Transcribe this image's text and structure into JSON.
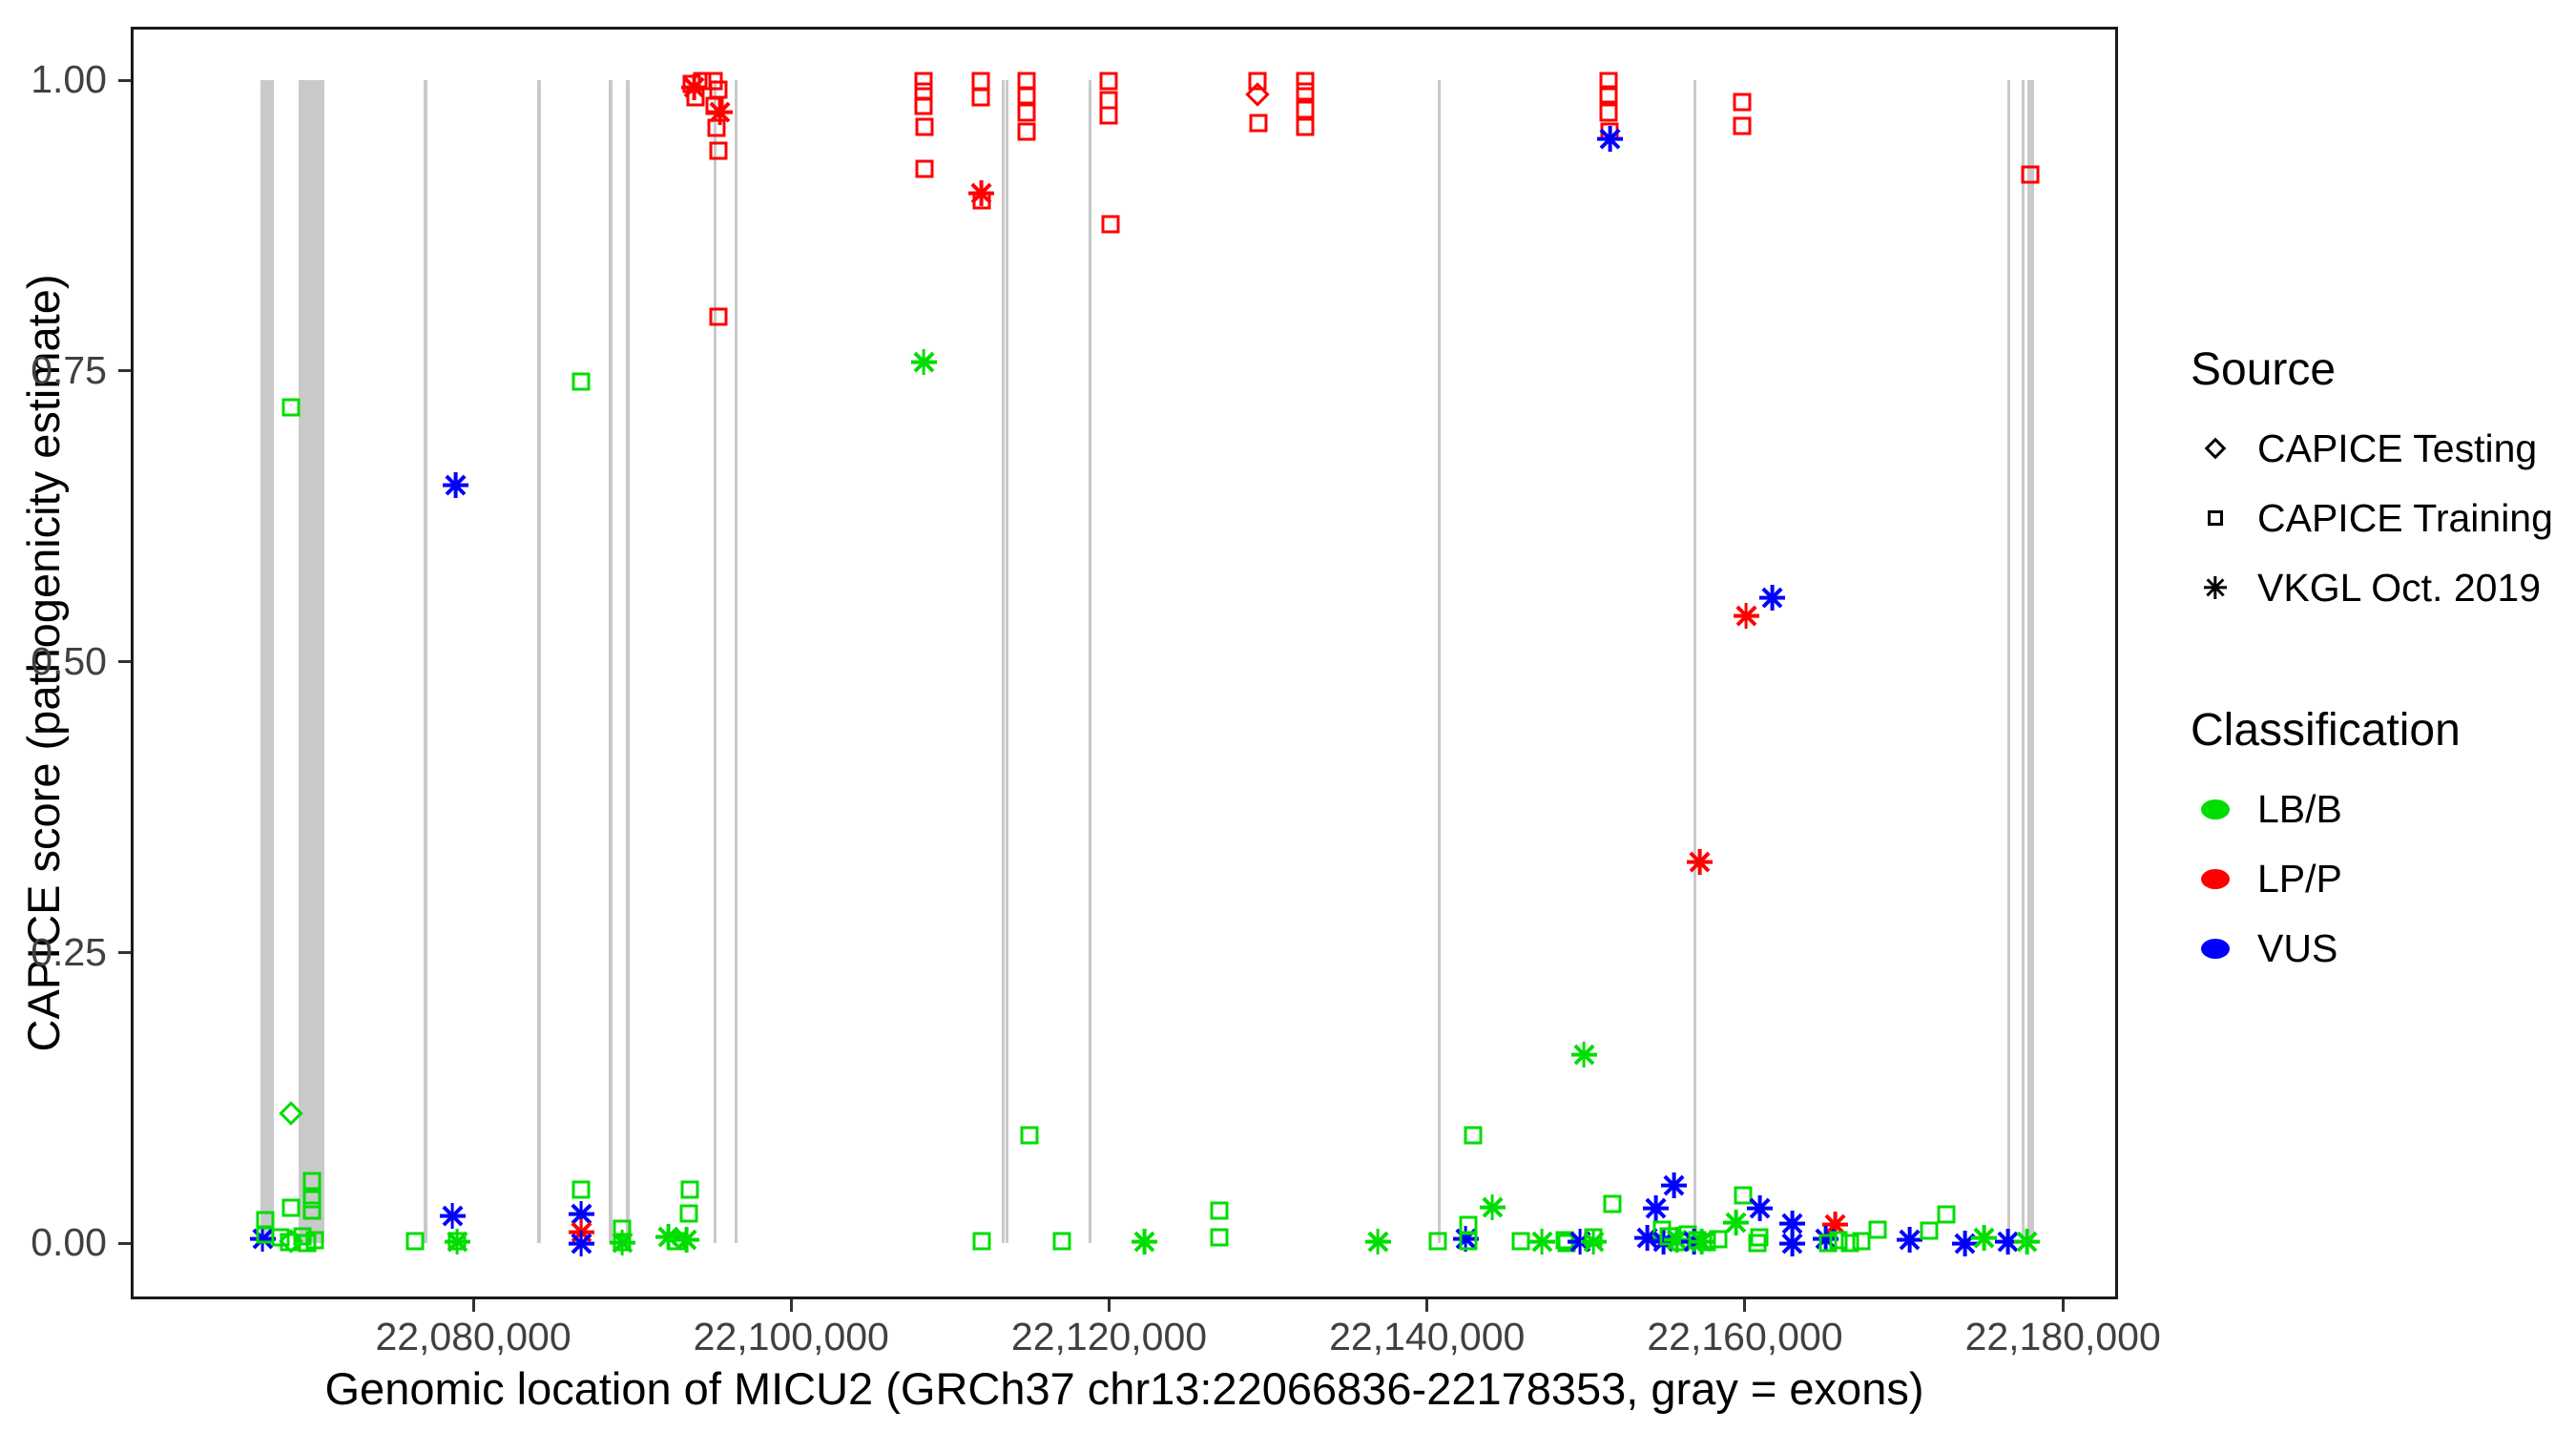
{
  "chart_data": {
    "type": "scatter",
    "title": "",
    "xlabel": "Genomic location of MICU2 (GRCh37 chr13:22066836-22178353, gray = exons)",
    "ylabel": "CAPICE score (pathogenicity estimate)",
    "x_range": [
      22058450,
      22183470
    ],
    "y_range": [
      -0.048,
      1.046
    ],
    "x_ticks": [
      22080000,
      22100000,
      22120000,
      22140000,
      22160000,
      22180000
    ],
    "x_tick_labels": [
      "22,080,000",
      "22,100,000",
      "22,120,000",
      "22,140,000",
      "22,160,000",
      "22,180,000"
    ],
    "y_ticks": [
      0.0,
      0.25,
      0.5,
      0.75,
      1.0
    ],
    "y_tick_labels": [
      "0.00",
      "0.25",
      "0.50",
      "0.75",
      "1.00"
    ],
    "grid": "off",
    "legend_position": "right",
    "colors": {
      "LB/B": "#00dd00",
      "LP/P": "#ff0000",
      "VUS": "#0000ff"
    },
    "shapes": {
      "CAPICE Testing": "diamond",
      "CAPICE Training": "square",
      "VKGL Oct. 2019": "asterisk"
    },
    "exons_note": "gray vertical bars spanning score 0-1",
    "exons": [
      [
        22066620,
        22067460
      ],
      [
        22069020,
        22070640
      ],
      [
        22076880,
        22077120
      ],
      [
        22084020,
        22084260
      ],
      [
        22088520,
        22088760
      ],
      [
        22089600,
        22089840
      ],
      [
        22095120,
        22095300
      ],
      [
        22096440,
        22096620
      ],
      [
        22113250,
        22113430
      ],
      [
        22113490,
        22113670
      ],
      [
        22118710,
        22118890
      ],
      [
        22140680,
        22140860
      ],
      [
        22156760,
        22156940
      ],
      [
        22176500,
        22176620
      ],
      [
        22177400,
        22177580
      ],
      [
        22177760,
        22178180
      ]
    ],
    "columns": [
      "position",
      "capice_score",
      "source",
      "classification"
    ],
    "rows": [
      [
        22066740,
        0.004,
        "VKGL Oct. 2019",
        "VUS"
      ],
      [
        22066900,
        0.02,
        "CAPICE Training",
        "LB/B"
      ],
      [
        22066900,
        0.008,
        "CAPICE Training",
        "LB/B"
      ],
      [
        22067900,
        0.005,
        "CAPICE Training",
        "LB/B"
      ],
      [
        22068400,
        0.001,
        "CAPICE Training",
        "LB/B"
      ],
      [
        22068550,
        0.002,
        "CAPICE Testing",
        "LB/B"
      ],
      [
        22068540,
        0.031,
        "CAPICE Training",
        "LB/B"
      ],
      [
        22068540,
        0.112,
        "CAPICE Testing",
        "LB/B"
      ],
      [
        22068540,
        0.719,
        "CAPICE Training",
        "LB/B"
      ],
      [
        22069280,
        0.006,
        "CAPICE Training",
        "LB/B"
      ],
      [
        22069550,
        0.0,
        "CAPICE Training",
        "LB/B"
      ],
      [
        22069860,
        0.054,
        "CAPICE Training",
        "LB/B"
      ],
      [
        22069860,
        0.038,
        "CAPICE Training",
        "LB/B"
      ],
      [
        22069860,
        0.028,
        "CAPICE Training",
        "LB/B"
      ],
      [
        22070050,
        0.003,
        "CAPICE Training",
        "LB/B"
      ],
      [
        22076340,
        0.002,
        "CAPICE Training",
        "LB/B"
      ],
      [
        22078680,
        0.024,
        "VKGL Oct. 2019",
        "VUS"
      ],
      [
        22078900,
        0.652,
        "VKGL Oct. 2019",
        "VUS"
      ],
      [
        22078980,
        0.002,
        "VKGL Oct. 2019",
        "LB/B"
      ],
      [
        22078980,
        0.002,
        "CAPICE Training",
        "LB/B"
      ],
      [
        22086780,
        0.741,
        "CAPICE Training",
        "LB/B"
      ],
      [
        22086780,
        0.046,
        "CAPICE Training",
        "LB/B"
      ],
      [
        22086780,
        0.025,
        "VKGL Oct. 2019",
        "VUS"
      ],
      [
        22086780,
        0.01,
        "VKGL Oct. 2019",
        "LP/P"
      ],
      [
        22086780,
        0.0,
        "VKGL Oct. 2019",
        "VUS"
      ],
      [
        22089360,
        0.013,
        "CAPICE Training",
        "LB/B"
      ],
      [
        22089360,
        0.001,
        "VKGL Oct. 2019",
        "LB/B"
      ],
      [
        22089360,
        0.001,
        "CAPICE Training",
        "LB/B"
      ],
      [
        22093740,
        0.997,
        "CAPICE Training",
        "LP/P"
      ],
      [
        22094400,
        0.999,
        "CAPICE Training",
        "LP/P"
      ],
      [
        22095100,
        0.999,
        "CAPICE Training",
        "LP/P"
      ],
      [
        22095400,
        0.992,
        "CAPICE Training",
        "LP/P"
      ],
      [
        22094000,
        0.985,
        "CAPICE Training",
        "LP/P"
      ],
      [
        22095200,
        0.978,
        "CAPICE Training",
        "LP/P"
      ],
      [
        22093900,
        0.994,
        "VKGL Oct. 2019",
        "LP/P"
      ],
      [
        22095500,
        0.973,
        "VKGL Oct. 2019",
        "LP/P"
      ],
      [
        22095300,
        0.959,
        "CAPICE Training",
        "LP/P"
      ],
      [
        22095400,
        0.939,
        "CAPICE Training",
        "LP/P"
      ],
      [
        22095400,
        0.797,
        "CAPICE Training",
        "LP/P"
      ],
      [
        22093600,
        0.046,
        "CAPICE Training",
        "LB/B"
      ],
      [
        22093550,
        0.026,
        "CAPICE Training",
        "LB/B"
      ],
      [
        22092300,
        0.006,
        "VKGL Oct. 2019",
        "LB/B"
      ],
      [
        22093400,
        0.003,
        "VKGL Oct. 2019",
        "LB/B"
      ],
      [
        22092800,
        0.002,
        "CAPICE Training",
        "LB/B"
      ],
      [
        22108330,
        0.758,
        "VKGL Oct. 2019",
        "LB/B"
      ],
      [
        22108330,
        0.999,
        "CAPICE Training",
        "LP/P"
      ],
      [
        22108330,
        0.99,
        "CAPICE Training",
        "LP/P"
      ],
      [
        22108330,
        0.978,
        "CAPICE Training",
        "LP/P"
      ],
      [
        22108380,
        0.96,
        "CAPICE Training",
        "LP/P"
      ],
      [
        22108380,
        0.924,
        "CAPICE Training",
        "LP/P"
      ],
      [
        22111930,
        0.999,
        "CAPICE Training",
        "LP/P"
      ],
      [
        22111930,
        0.985,
        "CAPICE Training",
        "LP/P"
      ],
      [
        22111980,
        0.897,
        "CAPICE Training",
        "LP/P"
      ],
      [
        22111980,
        0.903,
        "VKGL Oct. 2019",
        "LP/P"
      ],
      [
        22111980,
        0.002,
        "CAPICE Training",
        "LB/B"
      ],
      [
        22114810,
        0.999,
        "CAPICE Training",
        "LP/P"
      ],
      [
        22114810,
        0.987,
        "CAPICE Training",
        "LP/P"
      ],
      [
        22114810,
        0.972,
        "CAPICE Training",
        "LP/P"
      ],
      [
        22114810,
        0.956,
        "CAPICE Training",
        "LP/P"
      ],
      [
        22114990,
        0.093,
        "CAPICE Training",
        "LB/B"
      ],
      [
        22119970,
        0.999,
        "CAPICE Training",
        "LP/P"
      ],
      [
        22119970,
        0.983,
        "CAPICE Training",
        "LP/P"
      ],
      [
        22119970,
        0.97,
        "CAPICE Training",
        "LP/P"
      ],
      [
        22120070,
        0.876,
        "CAPICE Training",
        "LP/P"
      ],
      [
        22117030,
        0.002,
        "CAPICE Training",
        "LB/B"
      ],
      [
        22122250,
        0.002,
        "VKGL Oct. 2019",
        "LB/B"
      ],
      [
        22126930,
        0.028,
        "CAPICE Training",
        "LB/B"
      ],
      [
        22126930,
        0.005,
        "CAPICE Training",
        "LB/B"
      ],
      [
        22129330,
        0.999,
        "CAPICE Training",
        "LP/P"
      ],
      [
        22129330,
        0.988,
        "CAPICE Testing",
        "LP/P"
      ],
      [
        22129400,
        0.963,
        "CAPICE Training",
        "LP/P"
      ],
      [
        22132330,
        0.999,
        "CAPICE Training",
        "LP/P"
      ],
      [
        22132330,
        0.99,
        "CAPICE Training",
        "LP/P"
      ],
      [
        22132330,
        0.975,
        "CAPICE Training",
        "LP/P"
      ],
      [
        22132330,
        0.96,
        "CAPICE Training",
        "LP/P"
      ],
      [
        22136900,
        0.002,
        "VKGL Oct. 2019",
        "LB/B"
      ],
      [
        22140680,
        0.002,
        "CAPICE Training",
        "LB/B"
      ],
      [
        22142420,
        0.004,
        "VKGL Oct. 2019",
        "VUS"
      ],
      [
        22142600,
        0.016,
        "CAPICE Training",
        "LB/B"
      ],
      [
        22142600,
        0.002,
        "CAPICE Training",
        "LB/B"
      ],
      [
        22142900,
        0.093,
        "CAPICE Training",
        "LB/B"
      ],
      [
        22144100,
        0.031,
        "VKGL Oct. 2019",
        "LB/B"
      ],
      [
        22145900,
        0.002,
        "CAPICE Training",
        "LB/B"
      ],
      [
        22147220,
        0.002,
        "VKGL Oct. 2019",
        "LB/B"
      ],
      [
        22148660,
        0.003,
        "CAPICE Training",
        "LB/B"
      ],
      [
        22148780,
        0.0,
        "CAPICE Training",
        "LB/B"
      ],
      [
        22149620,
        0.002,
        "VKGL Oct. 2019",
        "VUS"
      ],
      [
        22150460,
        0.002,
        "VKGL Oct. 2019",
        "LB/B"
      ],
      [
        22150460,
        0.005,
        "CAPICE Training",
        "LB/B"
      ],
      [
        22149860,
        0.162,
        "VKGL Oct. 2019",
        "LB/B"
      ],
      [
        22151660,
        0.034,
        "CAPICE Training",
        "LB/B"
      ],
      [
        22151420,
        0.999,
        "CAPICE Training",
        "LP/P"
      ],
      [
        22151420,
        0.988,
        "CAPICE Training",
        "LP/P"
      ],
      [
        22151420,
        0.972,
        "CAPICE Training",
        "LP/P"
      ],
      [
        22151470,
        0.956,
        "CAPICE Training",
        "LP/P"
      ],
      [
        22151500,
        0.95,
        "VKGL Oct. 2019",
        "VUS"
      ],
      [
        22153880,
        0.005,
        "VKGL Oct. 2019",
        "VUS"
      ],
      [
        22154420,
        0.03,
        "VKGL Oct. 2019",
        "VUS"
      ],
      [
        22154780,
        0.012,
        "CAPICE Training",
        "LB/B"
      ],
      [
        22155560,
        0.05,
        "VKGL Oct. 2019",
        "VUS"
      ],
      [
        22154900,
        0.002,
        "VKGL Oct. 2019",
        "VUS"
      ],
      [
        22155200,
        0.006,
        "CAPICE Training",
        "LB/B"
      ],
      [
        22155700,
        0.003,
        "VKGL Oct. 2019",
        "LB/B"
      ],
      [
        22155900,
        0.001,
        "CAPICE Training",
        "LB/B"
      ],
      [
        22156400,
        0.008,
        "CAPICE Training",
        "LB/B"
      ],
      [
        22156800,
        0.002,
        "VKGL Oct. 2019",
        "VUS"
      ],
      [
        22157000,
        0.003,
        "CAPICE Training",
        "LB/B"
      ],
      [
        22157300,
        0.002,
        "VKGL Oct. 2019",
        "LB/B"
      ],
      [
        22157600,
        0.001,
        "CAPICE Training",
        "LB/B"
      ],
      [
        22158300,
        0.004,
        "CAPICE Training",
        "LB/B"
      ],
      [
        22157180,
        0.328,
        "VKGL Oct. 2019",
        "LP/P"
      ],
      [
        22159880,
        0.041,
        "CAPICE Training",
        "LB/B"
      ],
      [
        22159460,
        0.018,
        "VKGL Oct. 2019",
        "LB/B"
      ],
      [
        22160960,
        0.03,
        "VKGL Oct. 2019",
        "VUS"
      ],
      [
        22160900,
        0.005,
        "CAPICE Training",
        "LB/B"
      ],
      [
        22160800,
        0.0,
        "CAPICE Training",
        "LB/B"
      ],
      [
        22159830,
        0.981,
        "CAPICE Training",
        "LP/P"
      ],
      [
        22159830,
        0.961,
        "CAPICE Training",
        "LP/P"
      ],
      [
        22160070,
        0.54,
        "VKGL Oct. 2019",
        "LP/P"
      ],
      [
        22161740,
        0.555,
        "VKGL Oct. 2019",
        "VUS"
      ],
      [
        22163000,
        0.017,
        "VKGL Oct. 2019",
        "VUS"
      ],
      [
        22163000,
        0.0,
        "VKGL Oct. 2019",
        "VUS"
      ],
      [
        22165700,
        0.016,
        "VKGL Oct. 2019",
        "LP/P"
      ],
      [
        22165100,
        0.004,
        "VKGL Oct. 2019",
        "VUS"
      ],
      [
        22165200,
        0.0,
        "CAPICE Training",
        "LB/B"
      ],
      [
        22165900,
        0.003,
        "CAPICE Training",
        "LB/B"
      ],
      [
        22166600,
        0.0,
        "CAPICE Training",
        "LB/B"
      ],
      [
        22167300,
        0.002,
        "CAPICE Training",
        "LB/B"
      ],
      [
        22168340,
        0.012,
        "CAPICE Training",
        "LB/B"
      ],
      [
        22170380,
        0.003,
        "VKGL Oct. 2019",
        "VUS"
      ],
      [
        22171580,
        0.011,
        "CAPICE Training",
        "LB/B"
      ],
      [
        22172660,
        0.025,
        "CAPICE Training",
        "LB/B"
      ],
      [
        22173860,
        0.0,
        "VKGL Oct. 2019",
        "VUS"
      ],
      [
        22175060,
        0.005,
        "VKGL Oct. 2019",
        "LB/B"
      ],
      [
        22176560,
        0.002,
        "VKGL Oct. 2019",
        "VUS"
      ],
      [
        22177760,
        0.002,
        "VKGL Oct. 2019",
        "LB/B"
      ],
      [
        22177940,
        0.919,
        "CAPICE Training",
        "LP/P"
      ]
    ]
  },
  "legend": {
    "source": {
      "title": "Source",
      "items": [
        {
          "label": "CAPICE Testing",
          "shape": "diamond"
        },
        {
          "label": "CAPICE Training",
          "shape": "square"
        },
        {
          "label": "VKGL Oct. 2019",
          "shape": "asterisk"
        }
      ]
    },
    "classification": {
      "title": "Classification",
      "items": [
        {
          "label": "LB/B",
          "color": "#00dd00"
        },
        {
          "label": "LP/P",
          "color": "#ff0000"
        },
        {
          "label": "VUS",
          "color": "#0000ff"
        }
      ]
    }
  }
}
